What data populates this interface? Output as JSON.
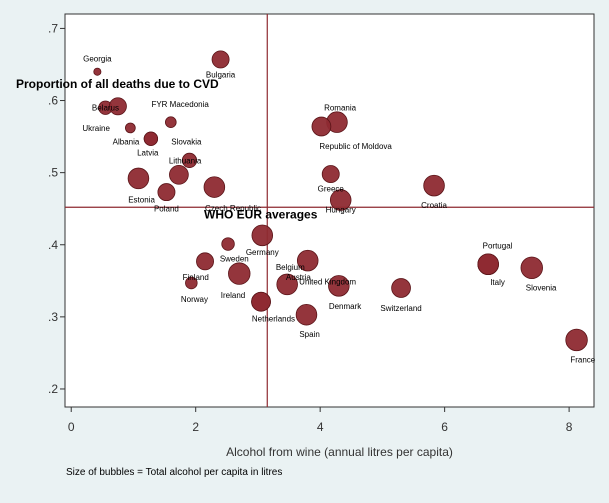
{
  "chart_data": {
    "type": "scatter",
    "xlabel": "Alcohol from wine (annual litres per capita)",
    "ylabel": "Proportion of all deaths due to CVD",
    "note": "Size of bubbles = Total alcohol per capita in litres",
    "xlim": [
      -0.1,
      8.4
    ],
    "ylim": [
      0.175,
      0.72
    ],
    "x_ticks": [
      0,
      2,
      4,
      6,
      8
    ],
    "x_tick_labels": [
      "0",
      "2",
      "4",
      "6",
      "8"
    ],
    "y_ticks": [
      0.2,
      0.3,
      0.4,
      0.5,
      0.6,
      0.7
    ],
    "y_tick_labels": [
      ".2",
      ".3",
      ".4",
      ".5",
      ".6",
      ".7"
    ],
    "grid": false,
    "reference_lines": {
      "x": 3.15,
      "y": 0.452,
      "label": "WHO EUR averages"
    },
    "colors": {
      "bubble": "#8e2a31",
      "bubble_edge": "#5a1418",
      "reference": "#8e2a31",
      "plot_bg": "#ffffff",
      "page_bg": "#eaf2f3"
    },
    "points": [
      {
        "label": "Georgia",
        "x": 0.42,
        "y": 0.64,
        "size": 4.0,
        "lx": 0.0,
        "ly": 0.018
      },
      {
        "label": "Bulgaria",
        "x": 2.4,
        "y": 0.657,
        "size": 9.5,
        "lx": 0.0,
        "ly": -0.021
      },
      {
        "label": "Belarus",
        "x": 0.55,
        "y": 0.59,
        "size": 7.5,
        "lx": 0.0,
        "ly": 0.0
      },
      {
        "label": "",
        "x": 0.75,
        "y": 0.592,
        "size": 9.5,
        "lx": 0.0,
        "ly": 0.0
      },
      {
        "label": "Ukraine",
        "x": 0.95,
        "y": 0.562,
        "size": 5.5,
        "lx": -0.55,
        "ly": 0.0
      },
      {
        "label": "FYR Macedonia",
        "x": 1.6,
        "y": 0.57,
        "size": 6.0,
        "lx": 0.15,
        "ly": 0.025
      },
      {
        "label": "Albania",
        "x": 1.28,
        "y": 0.547,
        "size": 7.5,
        "lx": -0.4,
        "ly": -0.004
      },
      {
        "label": "Latvia",
        "x": 1.28,
        "y": 0.547,
        "size": 7.5,
        "lx": -0.05,
        "ly": -0.019
      },
      {
        "label": "Slovakia",
        "x": 1.9,
        "y": 0.517,
        "size": 8.0,
        "lx": -0.05,
        "ly": 0.026
      },
      {
        "label": "Lithuania",
        "x": 1.73,
        "y": 0.497,
        "size": 10.5,
        "lx": 0.1,
        "ly": 0.02
      },
      {
        "label": "Estonia",
        "x": 1.08,
        "y": 0.492,
        "size": 11.5,
        "lx": 0.05,
        "ly": -0.029
      },
      {
        "label": "Poland",
        "x": 1.53,
        "y": 0.473,
        "size": 9.5,
        "lx": 0.0,
        "ly": -0.023
      },
      {
        "label": "Czech Republic",
        "x": 2.3,
        "y": 0.48,
        "size": 11.5,
        "lx": 0.3,
        "ly": -0.029
      },
      {
        "label": "Romania",
        "x": 4.27,
        "y": 0.57,
        "size": 11.5,
        "lx": 0.05,
        "ly": 0.02
      },
      {
        "label": "Republic of Moldova",
        "x": 4.02,
        "y": 0.564,
        "size": 10.5,
        "lx": 0.55,
        "ly": -0.027
      },
      {
        "label": "Greece",
        "x": 4.17,
        "y": 0.498,
        "size": 9.5,
        "lx": 0.0,
        "ly": -0.02
      },
      {
        "label": "Hungary",
        "x": 4.33,
        "y": 0.462,
        "size": 11.5,
        "lx": 0.0,
        "ly": -0.013
      },
      {
        "label": "Croatia",
        "x": 5.83,
        "y": 0.482,
        "size": 11.5,
        "lx": 0.0,
        "ly": -0.027
      },
      {
        "label": "Germany",
        "x": 3.07,
        "y": 0.413,
        "size": 11.5,
        "lx": 0.0,
        "ly": -0.023
      },
      {
        "label": "Sweden",
        "x": 2.52,
        "y": 0.401,
        "size": 7.0,
        "lx": 0.1,
        "ly": -0.02
      },
      {
        "label": "Finland",
        "x": 2.15,
        "y": 0.377,
        "size": 9.5,
        "lx": -0.15,
        "ly": -0.022
      },
      {
        "label": "Ireland",
        "x": 2.7,
        "y": 0.36,
        "size": 12.0,
        "lx": -0.1,
        "ly": -0.03
      },
      {
        "label": "Norway",
        "x": 1.93,
        "y": 0.347,
        "size": 6.5,
        "lx": 0.05,
        "ly": -0.022
      },
      {
        "label": "Belgium",
        "x": 3.47,
        "y": 0.345,
        "size": 11.5,
        "lx": 0.05,
        "ly": 0.024
      },
      {
        "label": "Austria",
        "x": 3.8,
        "y": 0.378,
        "size": 11.5,
        "lx": -0.15,
        "ly": -0.023
      },
      {
        "label": "United Kingdom",
        "x": 3.05,
        "y": 0.321,
        "size": 10.5,
        "lx": 1.07,
        "ly": 0.028
      },
      {
        "label": "Netherlands",
        "x": 3.05,
        "y": 0.321,
        "size": 10.5,
        "lx": 0.2,
        "ly": -0.023
      },
      {
        "label": "Denmark",
        "x": 4.3,
        "y": 0.343,
        "size": 11.5,
        "lx": 0.1,
        "ly": -0.028
      },
      {
        "label": "Switzerland",
        "x": 5.3,
        "y": 0.34,
        "size": 10.5,
        "lx": 0.0,
        "ly": -0.028
      },
      {
        "label": "Spain",
        "x": 3.78,
        "y": 0.303,
        "size": 11.5,
        "lx": 0.05,
        "ly": -0.027
      },
      {
        "label": "Portugal",
        "x": 6.7,
        "y": 0.373,
        "size": 11.5,
        "lx": 0.15,
        "ly": 0.026
      },
      {
        "label": "Italy",
        "x": 6.7,
        "y": 0.373,
        "size": 11.5,
        "lx": 0.15,
        "ly": -0.025
      },
      {
        "label": "Slovenia",
        "x": 7.4,
        "y": 0.368,
        "size": 12.0,
        "lx": 0.15,
        "ly": -0.027
      },
      {
        "label": "France",
        "x": 8.12,
        "y": 0.268,
        "size": 12.0,
        "lx": 0.1,
        "ly": -0.027
      }
    ]
  }
}
